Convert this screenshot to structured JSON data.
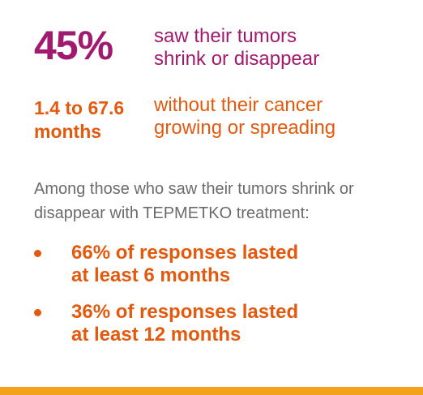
{
  "stats": [
    {
      "value_lines": [
        "45%"
      ],
      "description_lines": [
        "saw their tumors",
        "shrink or disappear"
      ]
    },
    {
      "value_lines": [
        "1.4 to 67.6",
        "months"
      ],
      "description_lines": [
        "without their cancer",
        "growing or spreading"
      ]
    }
  ],
  "intro_lines": [
    "Among those who saw their tumors shrink or",
    "disappear with TEPMETKO treatment:"
  ],
  "bullets": [
    {
      "lines": [
        "66% of responses lasted",
        "at least 6 months"
      ]
    },
    {
      "lines": [
        "36% of responses lasted",
        "at least 12 months"
      ]
    }
  ]
}
